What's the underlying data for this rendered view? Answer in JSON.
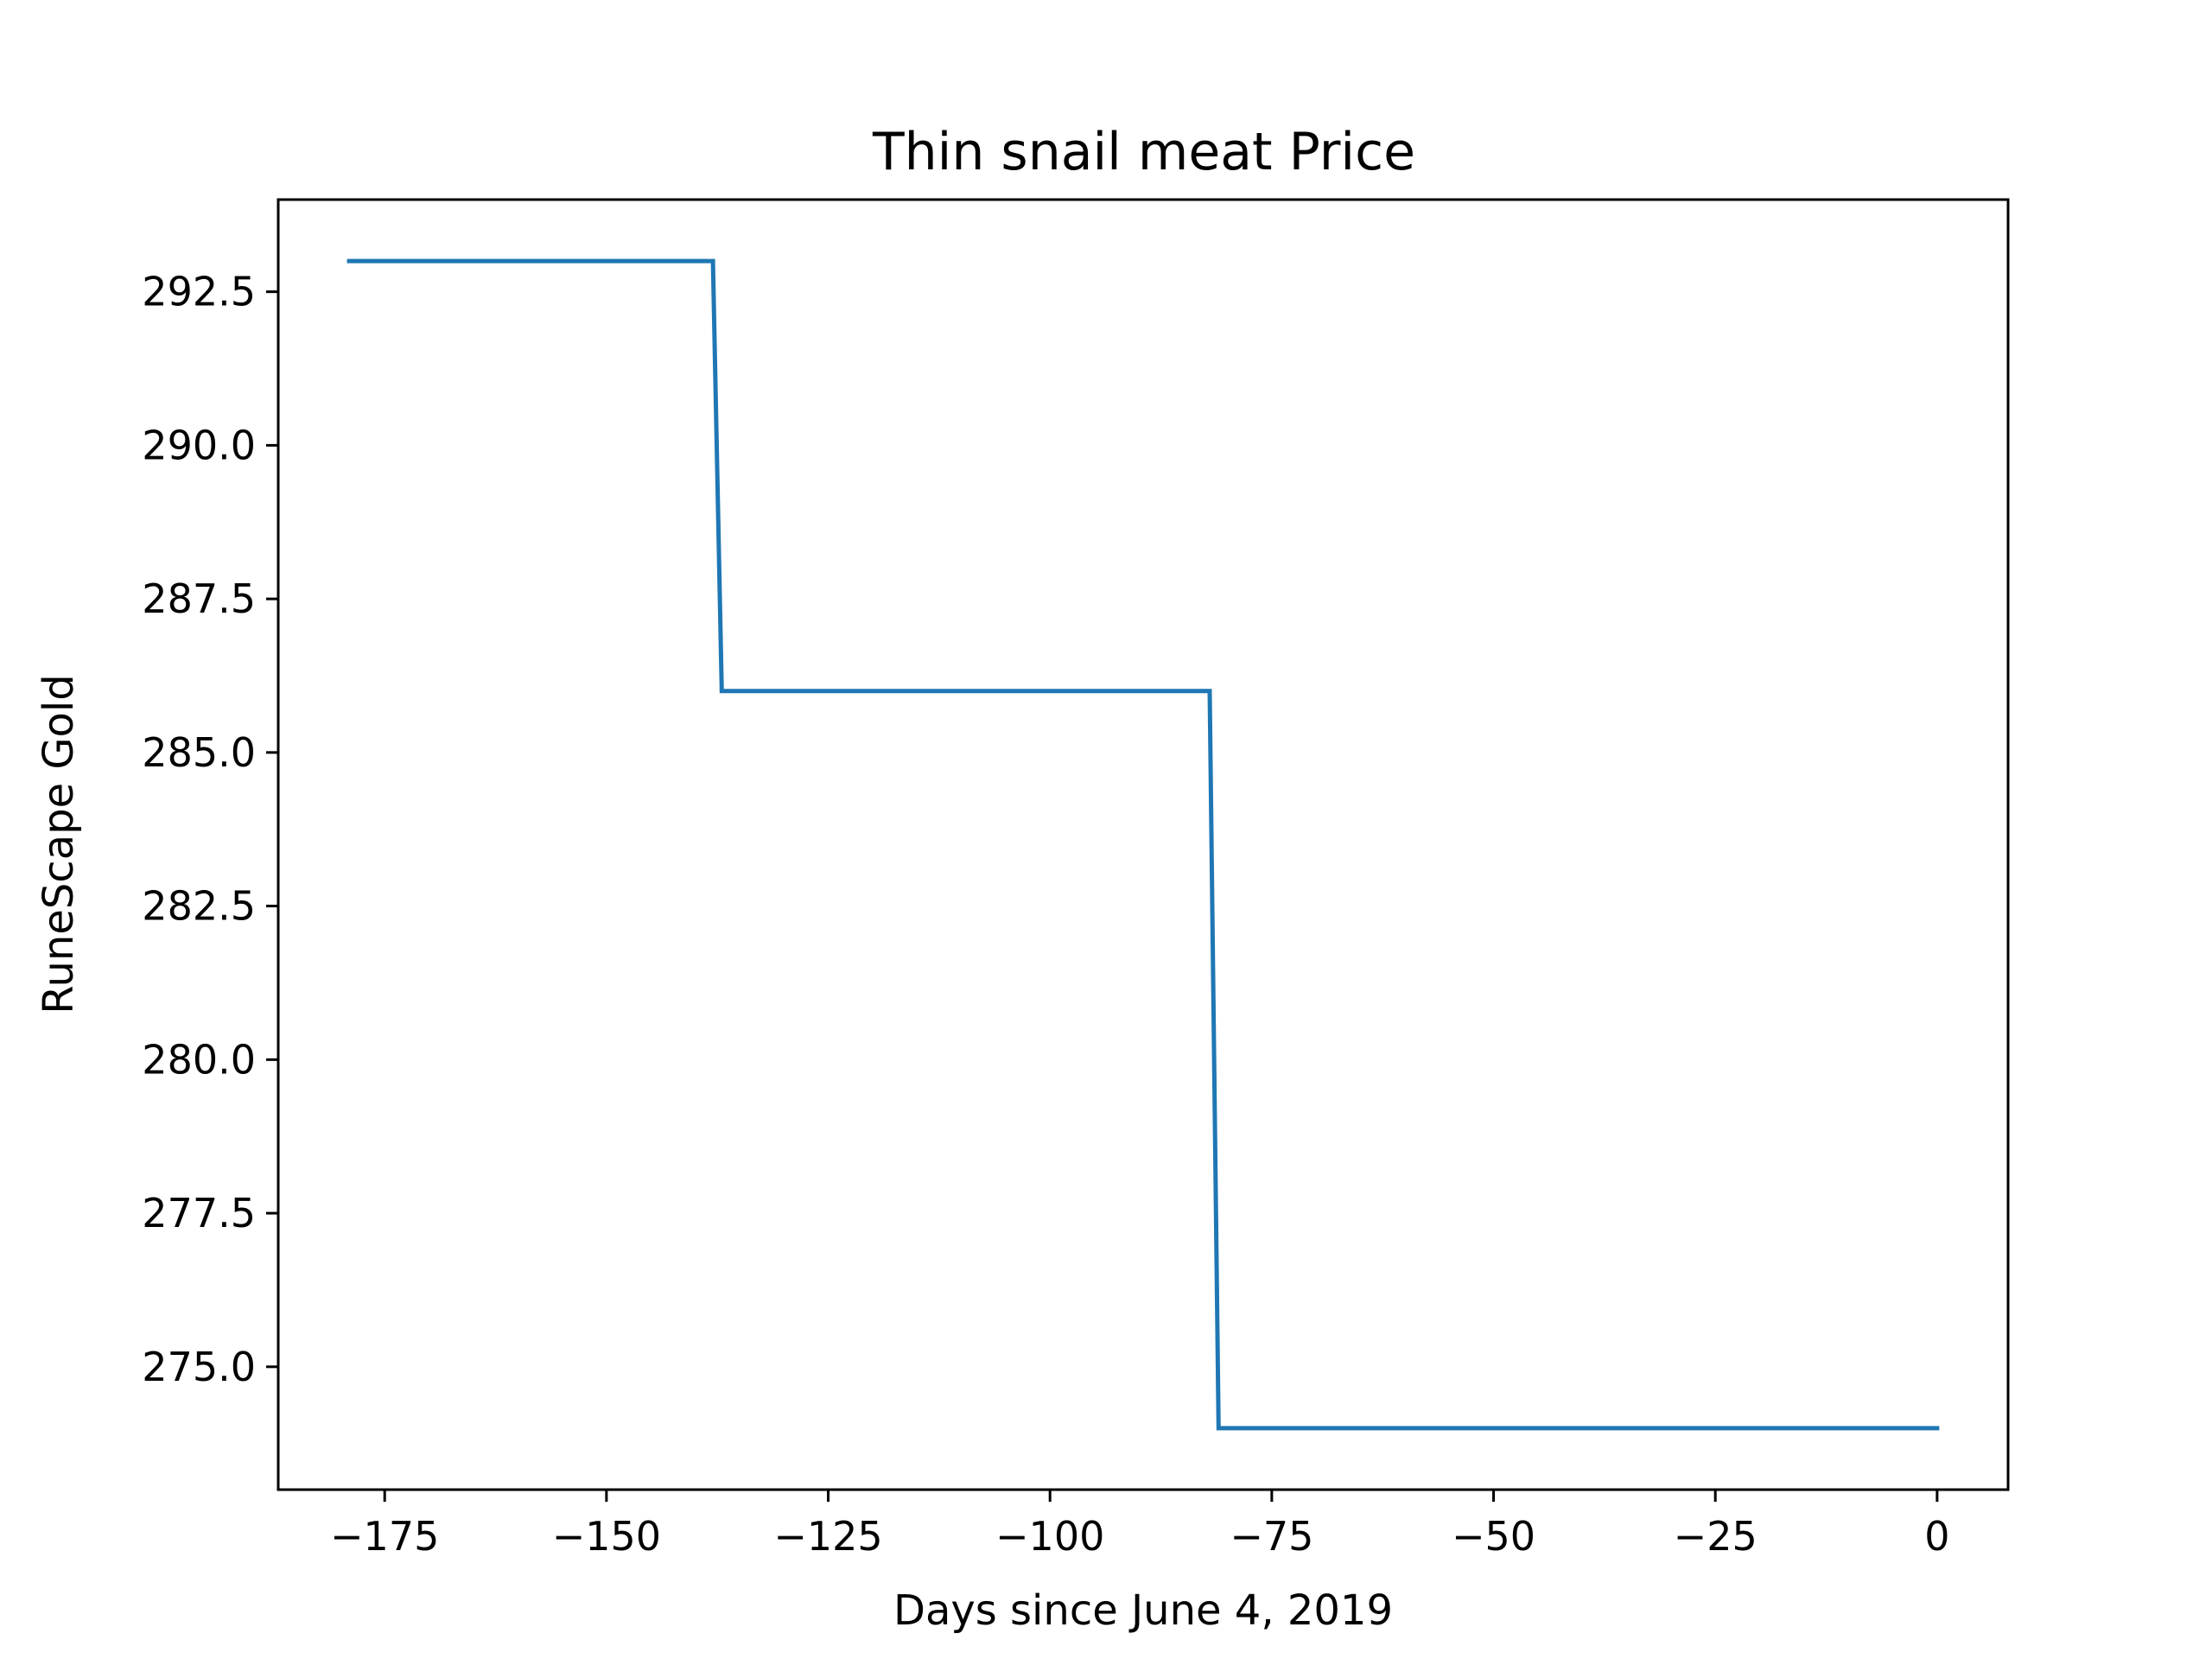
{
  "chart_data": {
    "type": "line",
    "title": "Thin snail meat Price",
    "xlabel": "Days since June 4, 2019",
    "ylabel": "RuneScape Gold",
    "xlim": [
      -187,
      8
    ],
    "ylim": [
      273.0,
      294.0
    ],
    "x_ticks": [
      -175,
      -150,
      -125,
      -100,
      -75,
      -50,
      -25,
      0
    ],
    "x_tick_labels": [
      "−175",
      "−150",
      "−125",
      "−100",
      "−75",
      "−50",
      "−25",
      "0"
    ],
    "y_ticks": [
      275.0,
      277.5,
      280.0,
      282.5,
      285.0,
      287.5,
      290.0,
      292.5
    ],
    "y_tick_labels": [
      "275.0",
      "277.5",
      "280.0",
      "282.5",
      "285.0",
      "287.5",
      "290.0",
      "292.5"
    ],
    "grid": false,
    "line_color": "#1f77b4",
    "series": [
      {
        "x": [
          -179,
          -138,
          -137,
          -82,
          -81,
          0
        ],
        "y": [
          293,
          293,
          286,
          286,
          274,
          274
        ]
      }
    ]
  }
}
